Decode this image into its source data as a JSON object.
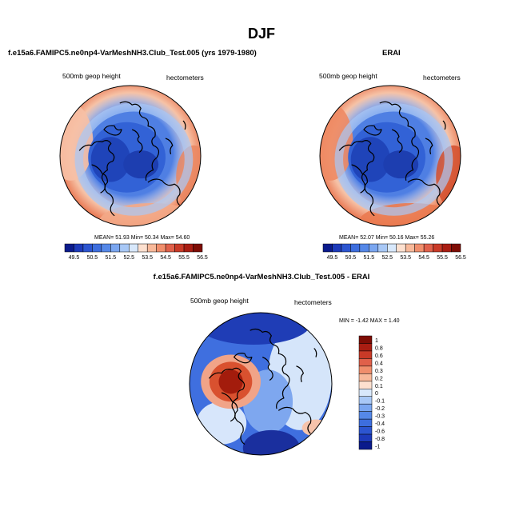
{
  "figure": {
    "title": "DJF",
    "panels": [
      {
        "title": "f.e15a6.FAMIPC5.ne0np4-VarMeshNH3.Club_Test.005 (yrs 1979-1980)",
        "left_label": "500mb geop height",
        "right_label": "hectometers",
        "stats": "MEAN=  51.93  Min=  50.34  Max=  54.60"
      },
      {
        "title": "ERAI",
        "left_label": "500mb geop height",
        "right_label": "hectometers",
        "stats": "MEAN=  52.07  Min=  50.16  Max=  55.26"
      },
      {
        "title": "f.e15a6.FAMIPC5.ne0np4-VarMeshNH3.Club_Test.005 - ERAI",
        "left_label": "500mb geop height",
        "right_label": "hectometers",
        "stats": "MIN =  -1.42 MAX =   1.40"
      }
    ]
  },
  "colors": {
    "deep_blue": "#1a2a9c",
    "blue": "#2f62d8",
    "light_blue": "#cfe3f7",
    "pale": "#fbe3d3",
    "orange": "#ec7a55",
    "red": "#c23319",
    "dark_red": "#8c1a0a"
  },
  "chart_data": [
    {
      "type": "heatmap",
      "title": "f.e15a6.FAMIPC5.ne0np4-VarMeshNH3.Club_Test.005 (yrs 1979-1980)",
      "field": "500mb geop height",
      "units": "hectometers",
      "projection": "polar stereographic (north pole)",
      "mean": 51.93,
      "min": 50.34,
      "max": 54.6,
      "colorbar_levels": [
        49.5,
        50,
        50.5,
        51,
        51.5,
        52,
        52.5,
        53,
        53.5,
        54,
        54.5,
        55,
        55.5,
        56,
        56.5
      ],
      "colorbar_tick_labels": [
        "49.5",
        "50.5",
        "51.5",
        "52.5",
        "53.5",
        "54.5",
        "55.5",
        "56.5"
      ]
    },
    {
      "type": "heatmap",
      "title": "ERAI",
      "field": "500mb geop height",
      "units": "hectometers",
      "projection": "polar stereographic (north pole)",
      "mean": 52.07,
      "min": 50.16,
      "max": 55.26,
      "colorbar_levels": [
        49.5,
        50,
        50.5,
        51,
        51.5,
        52,
        52.5,
        53,
        53.5,
        54,
        54.5,
        55,
        55.5,
        56,
        56.5
      ],
      "colorbar_tick_labels": [
        "49.5",
        "50.5",
        "51.5",
        "52.5",
        "53.5",
        "54.5",
        "55.5",
        "56.5"
      ]
    },
    {
      "type": "heatmap",
      "title": "f.e15a6.FAMIPC5.ne0np4-VarMeshNH3.Club_Test.005 - ERAI",
      "field": "500mb geop height",
      "units": "hectometers",
      "projection": "polar stereographic (north pole)",
      "min": -1.42,
      "max": 1.4,
      "colorbar_levels": [
        1,
        0.8,
        0.6,
        0.4,
        0.3,
        0.2,
        0.1,
        0,
        -0.1,
        -0.2,
        -0.3,
        -0.4,
        -0.6,
        -0.8,
        -1
      ],
      "colorbar_tick_labels": [
        "1",
        "0.8",
        "0.6",
        "0.4",
        "0.3",
        "0.2",
        "0.1",
        "0",
        "-0.1",
        "-0.2",
        "-0.3",
        "-0.4",
        "-0.6",
        "-0.8",
        "-1"
      ]
    }
  ]
}
